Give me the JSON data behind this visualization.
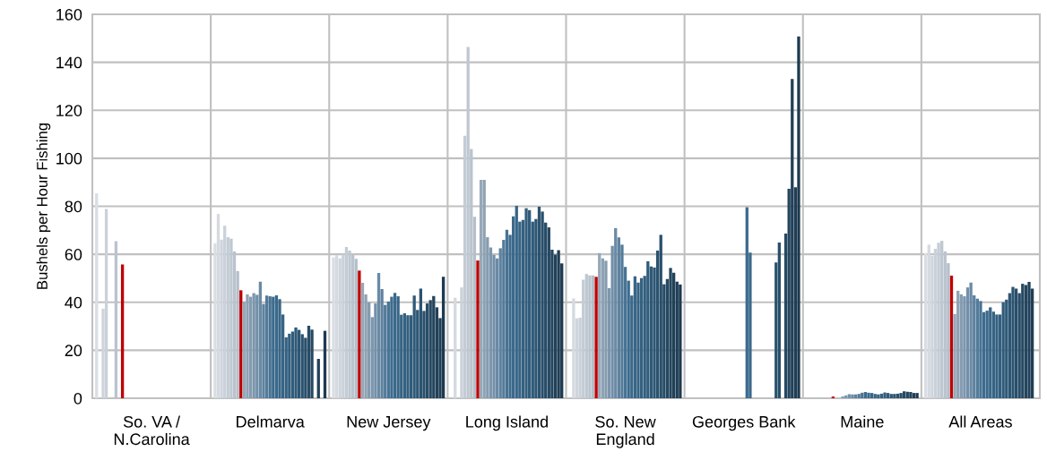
{
  "chart_data": {
    "type": "bar",
    "ylabel": "Bushels per Hour Fishing",
    "categories": [
      "So. VA /\nN.Carolina",
      "Delmarva",
      "New Jersey",
      "Long Island",
      "So. New\nEngland",
      "Georges Bank",
      "Maine",
      "All Areas"
    ],
    "ylim": [
      0,
      160
    ],
    "yticks": [
      0,
      20,
      40,
      60,
      80,
      100,
      120,
      140,
      160
    ],
    "grid": true,
    "series": [
      {
        "color": "#d9dee4",
        "values": [
          85.4,
          64.6,
          58.7,
          null,
          null,
          null,
          null,
          60.5
        ]
      },
      {
        "color": "#d4dae0",
        "values": [
          null,
          76.8,
          59.7,
          41.9,
          41.6,
          null,
          null,
          64.0
        ]
      },
      {
        "color": "#cfd5dd",
        "values": [
          37.3,
          66.1,
          58.3,
          null,
          33.3,
          null,
          null,
          59.3
        ]
      },
      {
        "color": "#cad1d9",
        "values": [
          78.9,
          71.9,
          59.9,
          46.2,
          33.6,
          null,
          null,
          62.3
        ]
      },
      {
        "color": "#c4ccd5",
        "values": [
          null,
          67.1,
          63.0,
          109.4,
          49.4,
          null,
          null,
          64.8
        ]
      },
      {
        "color": "#bfc8d1",
        "values": [
          null,
          66.5,
          61.5,
          146.4,
          51.8,
          null,
          null,
          65.6
        ]
      },
      {
        "color": "#bac3ce",
        "values": [
          65.5,
          61.2,
          60.2,
          103.9,
          51.2,
          null,
          null,
          61.2
        ]
      },
      {
        "color": "#b5bfca",
        "values": [
          null,
          53.0,
          58.1,
          75.6,
          51.2,
          null,
          null,
          56.3
        ]
      },
      {
        "color": "#c00000",
        "values": [
          55.8,
          45.0,
          53.2,
          57.4,
          50.6,
          null,
          0.7,
          51.1
        ]
      },
      {
        "color": "#97a8b8",
        "values": [
          null,
          40.3,
          48.1,
          91.0,
          60.5,
          null,
          null,
          35.1
        ]
      },
      {
        "color": "#8ea2b4",
        "values": [
          null,
          43.3,
          43.3,
          91.0,
          58.3,
          null,
          null,
          44.8
        ]
      },
      {
        "color": "#859cb0",
        "values": [
          null,
          42.3,
          40.0,
          67.1,
          57.3,
          null,
          0.8,
          43.3
        ]
      },
      {
        "color": "#7c96ad",
        "values": [
          null,
          43.8,
          33.8,
          62.8,
          45.9,
          null,
          1.2,
          42.5
        ]
      },
      {
        "color": "#7390a9",
        "values": [
          null,
          43.1,
          39.5,
          59.7,
          63.5,
          null,
          1.7,
          46.2
        ]
      },
      {
        "color": "#6a8aa5",
        "values": [
          null,
          48.6,
          52.2,
          58.3,
          70.9,
          null,
          1.6,
          48.2
        ]
      },
      {
        "color": "#5f829f",
        "values": [
          null,
          39.3,
          45.5,
          62.5,
          67.0,
          null,
          1.6,
          42.9
        ]
      },
      {
        "color": "#547b9a",
        "values": [
          null,
          42.8,
          38.9,
          66.0,
          64.0,
          null,
          1.8,
          41.5
        ]
      },
      {
        "color": "#487394",
        "values": [
          null,
          42.5,
          40.3,
          70.2,
          54.7,
          null,
          2.3,
          40.5
        ]
      },
      {
        "color": "#3d6b8e",
        "values": [
          null,
          42.3,
          42.3,
          68.1,
          49.0,
          79.6,
          2.6,
          35.9
        ]
      },
      {
        "color": "#3b698b",
        "values": [
          null,
          42.9,
          43.9,
          75.8,
          42.8,
          60.7,
          2.3,
          36.5
        ]
      },
      {
        "color": "#396688",
        "values": [
          null,
          41.3,
          42.5,
          80.2,
          50.8,
          null,
          2.2,
          37.9
        ]
      },
      {
        "color": "#376485",
        "values": [
          null,
          34.9,
          34.8,
          73.6,
          48.2,
          null,
          1.8,
          36.1
        ]
      },
      {
        "color": "#356181",
        "values": [
          null,
          25.4,
          35.4,
          74.3,
          50.1,
          null,
          1.6,
          34.9
        ]
      },
      {
        "color": "#335f7e",
        "values": [
          null,
          26.9,
          34.6,
          79.2,
          51.0,
          null,
          1.9,
          34.9
        ]
      },
      {
        "color": "#315c7b",
        "values": [
          null,
          27.8,
          34.6,
          78.4,
          57.1,
          null,
          2.4,
          40.0
        ]
      },
      {
        "color": "#2f5a78",
        "values": [
          null,
          29.5,
          42.8,
          73.6,
          54.9,
          null,
          2.2,
          41.1
        ]
      },
      {
        "color": "#2d5674",
        "values": [
          null,
          28.5,
          36.8,
          74.7,
          54.5,
          null,
          1.8,
          43.8
        ]
      },
      {
        "color": "#2b536f",
        "values": [
          null,
          26.7,
          45.7,
          79.8,
          61.5,
          56.6,
          1.8,
          46.4
        ]
      },
      {
        "color": "#294f6b",
        "values": [
          null,
          25.2,
          36.4,
          77.8,
          68.1,
          64.9,
          1.9,
          45.7
        ]
      },
      {
        "color": "#274c66",
        "values": [
          null,
          30.2,
          39.5,
          73.2,
          47.5,
          null,
          2.2,
          43.8
        ]
      },
      {
        "color": "#264862",
        "values": [
          null,
          28.6,
          40.9,
          71.2,
          49.7,
          68.6,
          2.9,
          47.7
        ]
      },
      {
        "color": "#24455e",
        "values": [
          null,
          null,
          42.6,
          61.9,
          54.3,
          87.3,
          2.7,
          47.2
        ]
      },
      {
        "color": "#224159",
        "values": [
          null,
          16.4,
          37.9,
          59.9,
          52.3,
          133.1,
          2.6,
          48.5
        ]
      },
      {
        "color": "#203e55",
        "values": [
          null,
          null,
          33.4,
          61.7,
          48.6,
          87.9,
          2.2,
          45.7
        ]
      },
      {
        "color": "#1e3a50",
        "values": [
          null,
          28.1,
          50.6,
          56.2,
          47.4,
          150.8,
          2.2,
          null
        ]
      }
    ]
  }
}
